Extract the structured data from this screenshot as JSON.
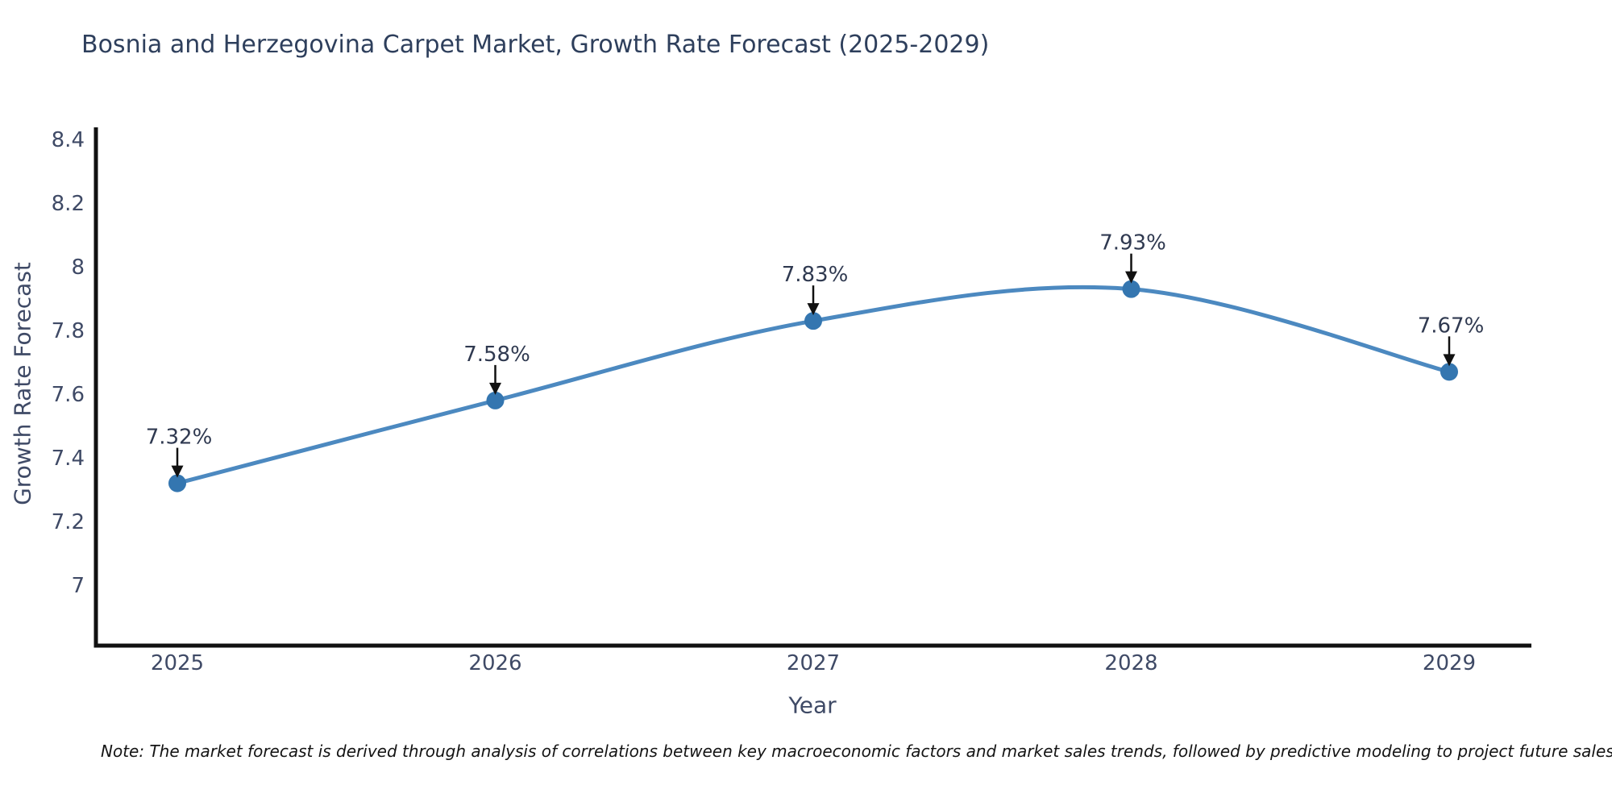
{
  "header": {
    "title": "Bosnia and Herzegovina Carpet Market, Growth Rate Forecast (2025-2029)"
  },
  "chart_data": {
    "type": "line",
    "title": "Bosnia and Herzegovina Carpet Market, Growth Rate Forecast (2025-2029)",
    "xlabel": "Year",
    "ylabel": "Growth Rate Forecast",
    "x": [
      "2025",
      "2026",
      "2027",
      "2028",
      "2029"
    ],
    "values": [
      7.32,
      7.58,
      7.83,
      7.93,
      7.67
    ],
    "point_labels": [
      "7.32%",
      "7.58%",
      "7.83%",
      "7.93%",
      "7.67%"
    ],
    "y_ticks": [
      8.4,
      8.2,
      8.0,
      7.8,
      7.6,
      7.4,
      7.2,
      7.0
    ],
    "y_tick_labels": [
      "8.4",
      "8.2",
      "8",
      "7.8",
      "7.6",
      "7.4",
      "7.2",
      "7"
    ],
    "ylim": [
      6.81,
      8.44
    ],
    "line_shape": "spline",
    "grid": false,
    "legend": "none",
    "colors": {
      "line": "#4c89c0",
      "marker": "#3476b0",
      "axis": "#111111",
      "annotation_arrow": "#111111"
    }
  },
  "note": {
    "text": "Note: The market forecast is derived through analysis of correlations between key macroeconomic factors and market sales trends, followed by predictive modeling to project future sales"
  }
}
